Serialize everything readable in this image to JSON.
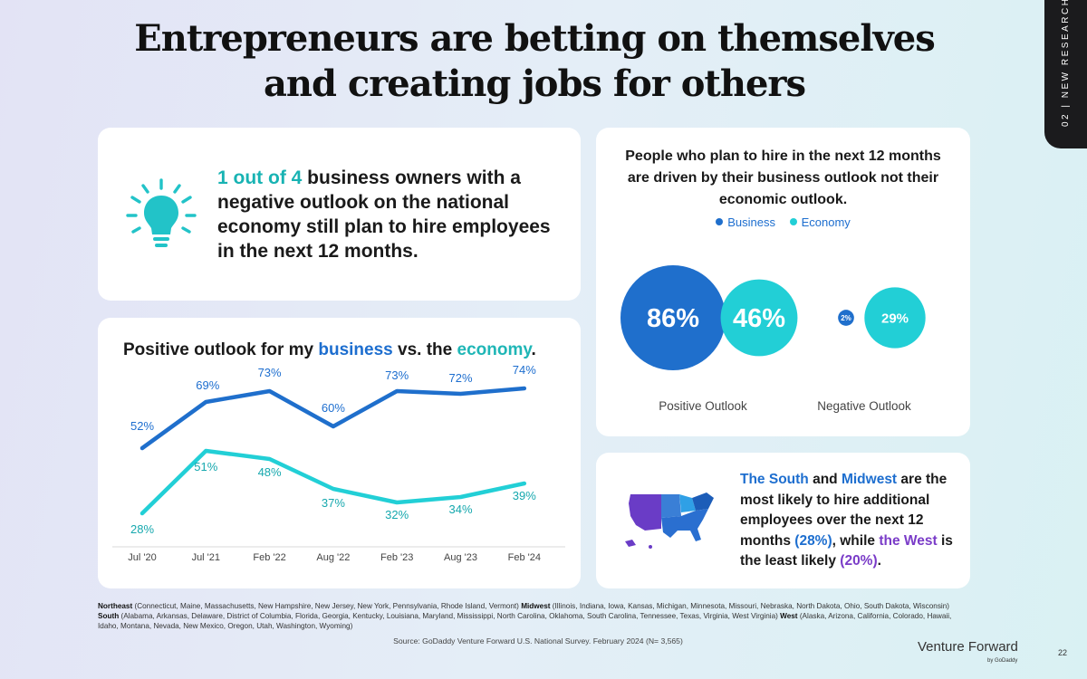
{
  "title_line1": "Entrepreneurs are betting on themselves",
  "title_line2": "and creating jobs for others",
  "side_tab": "02 | NEW RESEARCH",
  "stat": {
    "highlight": "1 out of 4",
    "text": " business owners with a negative outlook on the national economy still plan to hire employees in the next 12 months."
  },
  "line_panel": {
    "title_pre": "Positive outlook for my ",
    "title_business": "business",
    "title_mid": " vs. the ",
    "title_economy": "economy",
    "title_post": "."
  },
  "bubble_panel": {
    "title": "People who plan to hire in the next 12 months are driven by their business outlook not their economic outlook.",
    "legend_business": "Business",
    "legend_economy": "Economy"
  },
  "map_panel": {
    "t1": "The South",
    "t2": " and ",
    "t3": "Midwest",
    "t4": " are the most likely to hire additional employees over the next 12 months ",
    "t5": "(28%)",
    "t6": ", while ",
    "t7": "the West",
    "t8": " is the least likely ",
    "t9": "(20%)",
    "t10": "."
  },
  "footnote": {
    "ne_label": "Northeast",
    "ne_text": " (Connecticut, Maine, Massachusetts, New Hampshire, New Jersey, New York, Pennsylvania, Rhode Island, Vermont) ",
    "mw_label": "Midwest",
    "mw_text": " (Illinois, Indiana, Iowa, Kansas, Michigan, Minnesota, Missouri, Nebraska, North Dakota, Ohio, South Dakota, Wisconsin) ",
    "s_label": "South",
    "s_text": " (Alabama, Arkansas, Delaware, District of Columbia, Florida, Georgia, Kentucky, Louisiana, Maryland, Mississippi, North Carolina, Oklahoma, South Carolina, Tennessee, Texas, Virginia, West Virginia) ",
    "w_label": "West",
    "w_text": " (Alaska, Arizona, California, Colorado, Hawaii, Idaho, Montana, Nevada, New Mexico, Oregon, Utah, Washington, Wyoming)"
  },
  "source": "Source: GoDaddy Venture Forward U.S. National Survey. February 2024 (N= 3,565)",
  "brand": "Venture Forward",
  "brand_sub": "by GoDaddy",
  "page_number": "22",
  "colors": {
    "business": "#1f6fcc",
    "economy": "#22cfd6",
    "teal_text": "#18b3b3",
    "purple": "#7a3cc8"
  },
  "chart_data": [
    {
      "type": "line",
      "title": "Positive outlook for my business vs. the economy.",
      "categories": [
        "Jul '20",
        "Jul '21",
        "Feb '22",
        "Aug '22",
        "Feb '23",
        "Aug '23",
        "Feb '24"
      ],
      "series": [
        {
          "name": "business",
          "values": [
            52,
            69,
            73,
            60,
            73,
            72,
            74
          ],
          "labels": [
            "52%",
            "69%",
            "73%",
            "60%",
            "73%",
            "72%",
            "74%"
          ]
        },
        {
          "name": "economy",
          "values": [
            28,
            51,
            48,
            37,
            32,
            34,
            39
          ],
          "labels": [
            "28%",
            "51%",
            "48%",
            "37%",
            "32%",
            "34%",
            "39%"
          ]
        }
      ],
      "ylim": [
        20,
        80
      ],
      "grid": false
    },
    {
      "type": "bubble",
      "categories": [
        "Positive Outlook",
        "Negative Outlook"
      ],
      "series": [
        {
          "name": "Business",
          "values": [
            86,
            2
          ],
          "labels": [
            "86%",
            "2%"
          ]
        },
        {
          "name": "Economy",
          "values": [
            46,
            29
          ],
          "labels": [
            "46%",
            "29%"
          ]
        }
      ],
      "legend": "top-center"
    }
  ]
}
